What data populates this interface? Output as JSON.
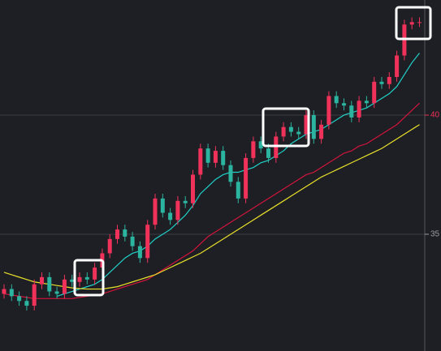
{
  "chart_data": {
    "type": "candlestick",
    "open": [
      32.5,
      32.7,
      32.4,
      32.2,
      32.0,
      32.9,
      33.2,
      32.6,
      32.5,
      33.1,
      33.0,
      33.2,
      33.1,
      33.6,
      34.2,
      34.8,
      35.2,
      34.9,
      34.5,
      34.0,
      35.4,
      36.5,
      35.9,
      35.6,
      36.4,
      36.3,
      37.5,
      38.6,
      38.0,
      38.5,
      37.9,
      37.2,
      36.5,
      38.2,
      38.9,
      38.6,
      38.2,
      39.1,
      39.5,
      39.3,
      39.2,
      40.0,
      39.0,
      39.6,
      40.8,
      40.5,
      40.4,
      39.9,
      40.6,
      40.5,
      41.4,
      41.3,
      41.6,
      42.5,
      43.8,
      43.9
    ],
    "high": [
      32.9,
      32.9,
      32.6,
      32.4,
      33.1,
      33.4,
      33.4,
      32.8,
      33.3,
      33.3,
      33.4,
      33.4,
      33.8,
      34.4,
      35.0,
      35.4,
      35.4,
      35.1,
      34.7,
      35.6,
      36.7,
      36.7,
      36.1,
      36.6,
      36.6,
      37.7,
      38.8,
      38.8,
      38.7,
      38.7,
      38.1,
      37.4,
      38.4,
      39.1,
      39.1,
      38.8,
      39.3,
      39.7,
      39.7,
      39.5,
      40.2,
      40.2,
      39.8,
      41.0,
      41.0,
      40.7,
      40.6,
      40.8,
      40.8,
      41.6,
      41.6,
      41.8,
      42.7,
      44.0,
      44.1,
      44.1
    ],
    "low": [
      32.3,
      32.2,
      32.0,
      31.8,
      31.8,
      32.7,
      32.4,
      32.3,
      32.3,
      32.8,
      32.8,
      32.9,
      32.9,
      33.4,
      34.0,
      34.6,
      34.7,
      34.3,
      33.8,
      33.8,
      35.2,
      35.7,
      35.4,
      35.4,
      36.1,
      36.1,
      37.3,
      37.8,
      37.8,
      37.7,
      37.0,
      36.3,
      36.3,
      38.0,
      38.4,
      38.0,
      38.0,
      38.9,
      39.1,
      39.0,
      39.0,
      38.8,
      38.8,
      39.4,
      40.3,
      40.2,
      39.7,
      39.7,
      40.3,
      40.3,
      41.1,
      41.1,
      41.4,
      42.3,
      43.6,
      43.7
    ],
    "close": [
      32.7,
      32.4,
      32.2,
      32.0,
      32.9,
      33.2,
      32.6,
      32.5,
      33.1,
      33.0,
      33.2,
      33.1,
      33.6,
      34.2,
      34.8,
      35.2,
      34.9,
      34.5,
      34.0,
      35.4,
      36.5,
      35.9,
      35.6,
      36.4,
      36.3,
      37.5,
      38.6,
      38.0,
      38.5,
      37.9,
      37.2,
      36.5,
      38.2,
      38.9,
      38.6,
      38.2,
      39.1,
      39.5,
      39.3,
      39.2,
      40.0,
      39.0,
      39.6,
      40.8,
      40.5,
      40.4,
      39.9,
      40.6,
      40.5,
      41.4,
      41.3,
      41.6,
      42.5,
      43.8,
      43.9,
      43.9
    ],
    "up_color": "#f0325a",
    "down_color": "#2bb5a0",
    "lines": [
      {
        "color": "#1fd1c8",
        "values": [
          null,
          null,
          null,
          null,
          null,
          null,
          null,
          32.4,
          32.5,
          32.6,
          32.7,
          32.8,
          32.9,
          33.1,
          33.4,
          33.7,
          34.0,
          34.2,
          34.3,
          34.5,
          34.8,
          35.0,
          35.2,
          35.5,
          35.8,
          36.2,
          36.7,
          37.0,
          37.3,
          37.5,
          37.6,
          37.6,
          37.7,
          37.8,
          38.0,
          38.1,
          38.3,
          38.5,
          38.8,
          39.0,
          39.2,
          39.3,
          39.4,
          39.6,
          39.8,
          40.0,
          40.1,
          40.2,
          40.3,
          40.5,
          40.7,
          40.9,
          41.2,
          41.7,
          42.2,
          42.6
        ]
      },
      {
        "color": "#d1143c",
        "values": [
          32.5,
          32.45,
          32.4,
          32.35,
          32.3,
          32.3,
          32.3,
          32.3,
          32.3,
          32.3,
          32.35,
          32.4,
          32.45,
          32.5,
          32.6,
          32.7,
          32.8,
          32.9,
          33.0,
          33.1,
          33.3,
          33.5,
          33.7,
          33.9,
          34.1,
          34.3,
          34.6,
          34.9,
          35.1,
          35.3,
          35.5,
          35.7,
          35.9,
          36.1,
          36.3,
          36.5,
          36.7,
          36.9,
          37.1,
          37.3,
          37.5,
          37.6,
          37.8,
          38.0,
          38.2,
          38.4,
          38.5,
          38.7,
          38.8,
          39.0,
          39.2,
          39.4,
          39.6,
          39.9,
          40.2,
          40.5
        ]
      },
      {
        "color": "#e8e02a",
        "values": [
          33.4,
          33.3,
          33.2,
          33.1,
          33.0,
          32.95,
          32.9,
          32.85,
          32.8,
          32.75,
          32.72,
          32.7,
          32.7,
          32.7,
          32.75,
          32.8,
          32.9,
          33.0,
          33.1,
          33.2,
          33.3,
          33.45,
          33.6,
          33.75,
          33.9,
          34.05,
          34.2,
          34.4,
          34.6,
          34.8,
          35.0,
          35.2,
          35.4,
          35.6,
          35.8,
          36.0,
          36.2,
          36.4,
          36.6,
          36.8,
          37.0,
          37.2,
          37.4,
          37.55,
          37.7,
          37.85,
          38.0,
          38.15,
          38.3,
          38.45,
          38.6,
          38.8,
          39.0,
          39.2,
          39.4,
          39.6
        ]
      }
    ],
    "ylim": [
      30.1,
      44.83
    ],
    "yticks": [
      40,
      35
    ],
    "grid": true
  }
}
